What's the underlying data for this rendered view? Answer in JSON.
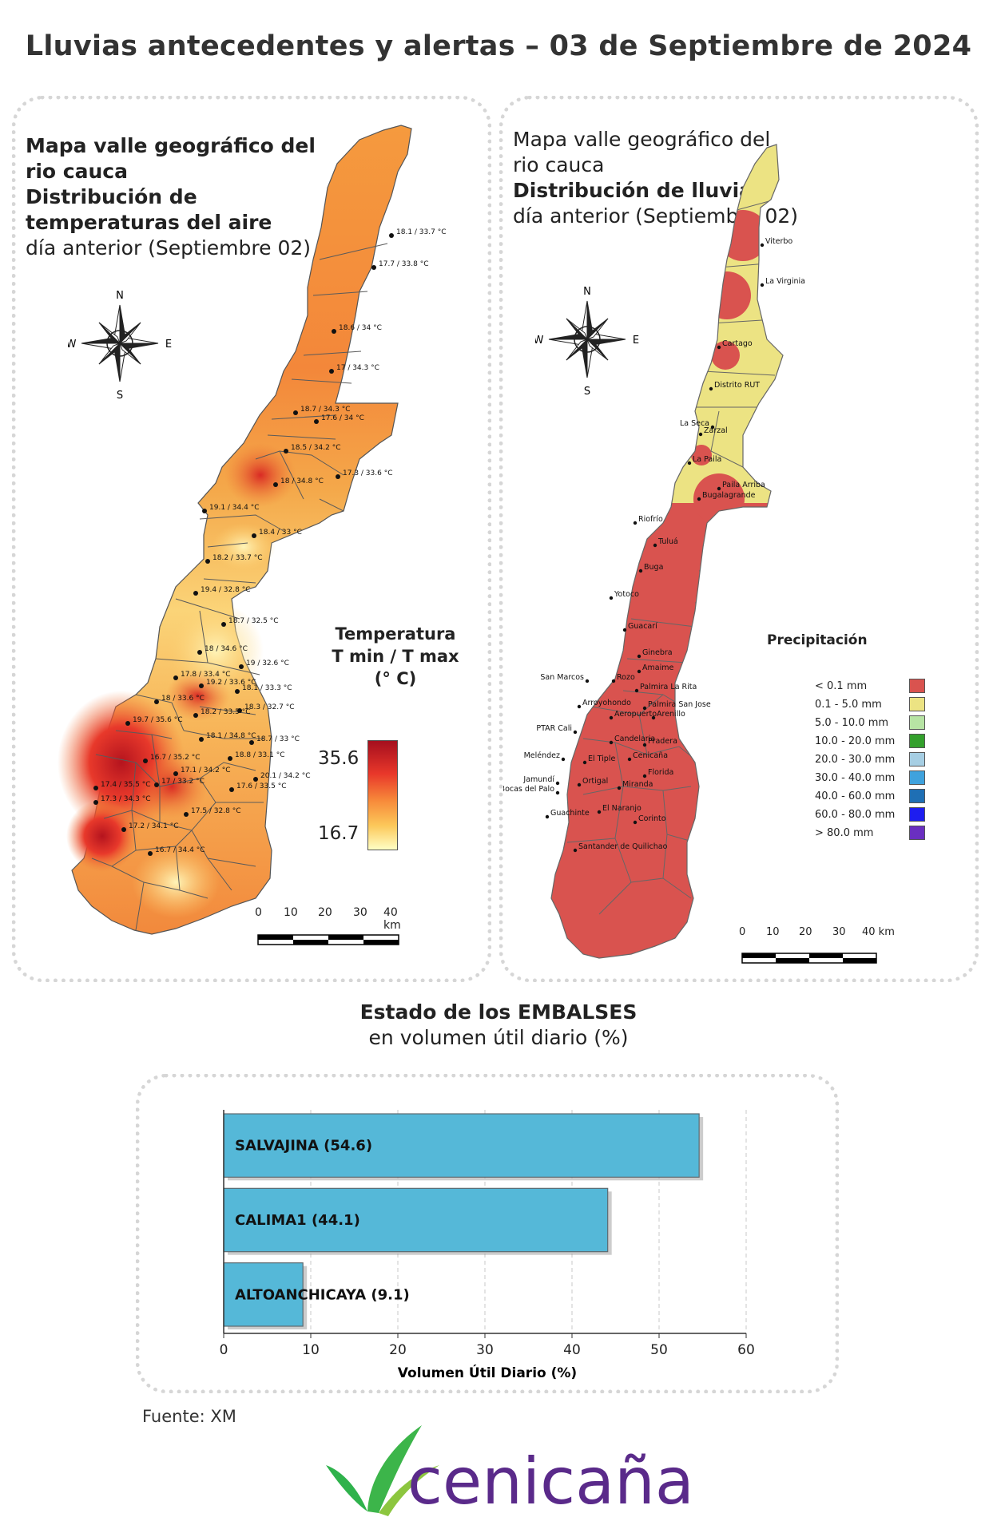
{
  "title": "Lluvias antecedentes y alertas – 03 de Septiembre de 2024",
  "left_panel": {
    "title_lines": [
      "Mapa valle geográfico del",
      "rio cauca",
      "Distribución de",
      "temperaturas del aire"
    ],
    "subtitle": "día anterior (Septiembre 02)",
    "compass": {
      "n": "N",
      "s": "S",
      "e": "E",
      "w": "W"
    },
    "legend": {
      "title_lines": [
        "Temperatura",
        "T min / T max",
        "(° C)"
      ],
      "max": "35.6",
      "min": "16.7",
      "colors": [
        "#a50f1e",
        "#e8372a",
        "#f78a3a",
        "#fcc85a",
        "#ffffc4"
      ]
    },
    "scale": {
      "labels": [
        "0",
        "10",
        "20",
        "30",
        "40 km"
      ]
    },
    "stations": [
      "18.1 / 33.7 °C",
      "17.7 / 33.8 °C",
      "18.6 / 34 °C",
      "17 / 34.3 °C",
      "18.7 / 34.3 °C",
      "17.6 / 34 °C",
      "18.5 / 34.2 °C",
      "17.3 / 33.6 °C",
      "18 / 34.8 °C",
      "19.1 / 34.4 °C",
      "18.4 / 33 °C",
      "18.2 / 33.7 °C",
      "19.4 / 32.8 °C",
      "18.7 / 32.5 °C",
      "18 / 34.6 °C",
      "19 / 32.6 °C",
      "17.8 / 33.4 °C",
      "19.2 / 33.6 °C",
      "18.1 / 33.3 °C",
      "18 / 33.6 °C",
      "18.3 / 32.7 °C",
      "18.2 / 33.5 °C",
      "19.7 / 35.6 °C",
      "18.1 / 34.8 °C",
      "18.7 / 33 °C",
      "18.8 / 33.1 °C",
      "16.7 / 35.2 °C",
      "17.1 / 34.2 °C",
      "20.1 / 34.2 °C",
      "17.4 / 35.5 °C",
      "17 / 33.2 °C",
      "17.6 / 33.5 °C",
      "17.3 / 34.3 °C",
      "17.5 / 32.8 °C",
      "17.2 / 34.1 °C",
      "16.7 / 34.4 °C"
    ]
  },
  "right_panel": {
    "title_lines": [
      "Mapa valle geográfico del",
      "rio cauca"
    ],
    "title_bold": "Distribución de lluvias",
    "subtitle": "día anterior (Septiembre 02)",
    "compass": {
      "n": "N",
      "s": "S",
      "e": "E",
      "w": "W"
    },
    "legend": {
      "title": "Precipitación",
      "items": [
        {
          "label": "< 0.1 mm",
          "color": "#d9534f"
        },
        {
          "label": "0.1 - 5.0 mm",
          "color": "#ece383"
        },
        {
          "label": "5.0 - 10.0 mm",
          "color": "#b7e4a4"
        },
        {
          "label": "10.0 - 20.0 mm",
          "color": "#33a02c"
        },
        {
          "label": "20.0 - 30.0 mm",
          "color": "#a6cee3"
        },
        {
          "label": "30.0 - 40.0 mm",
          "color": "#3fa2dd"
        },
        {
          "label": "40.0 - 60.0 mm",
          "color": "#1f6fb4"
        },
        {
          "label": "60.0 - 80.0 mm",
          "color": "#1d1df0"
        },
        {
          "label": "> 80.0 mm",
          "color": "#6a2fc0"
        }
      ]
    },
    "scale": {
      "labels": [
        "0",
        "10",
        "20",
        "30",
        "40 km"
      ]
    },
    "places": [
      "Viterbo",
      "La Virginia",
      "Cartago",
      "Distrito RUT",
      "La Seca",
      "Zarzal",
      "La Paila",
      "Paila Arriba",
      "Bugalagrande",
      "Riofrío",
      "Tuluá",
      "Buga",
      "Yotoco",
      "Guacarí",
      "Ginebra",
      "Amaime",
      "San Marcos",
      "Rozo",
      "Palmira La Rita",
      "Arroyohondo",
      "Palmira San Jose",
      "Aeropuerto",
      "Arenillo",
      "PTAR Cali",
      "Candelaria",
      "Pradera",
      "Cenicaña",
      "Meléndez",
      "El Tiple",
      "Florida",
      "Jamundí",
      "Bocas del Palo",
      "Ortigal",
      "Miranda",
      "El Naranjo",
      "Guachinte",
      "Corinto",
      "Santander de Quilichao"
    ]
  },
  "reservoirs": {
    "title": "Estado de los EMBALSES",
    "subtitle": "en volumen útil diario (%)"
  },
  "chart_data": {
    "type": "bar",
    "orientation": "horizontal",
    "categories": [
      "SALVAJINA (54.6)",
      "CALIMA1 (44.1)",
      "ALTOANCHICAYA (9.1)"
    ],
    "values": [
      54.6,
      44.1,
      9.1
    ],
    "xlabel": "Volumen Útil Diario (%)",
    "xlim": [
      0,
      60
    ],
    "xticks": [
      "0",
      "10",
      "20",
      "30",
      "40",
      "50",
      "60"
    ],
    "bar_color": "#55b8d8",
    "grid": "vertical dashed"
  },
  "source": "Fuente: XM",
  "logo": {
    "text": "cenicaña",
    "text_color": "#5a2a8a",
    "leaf_colors": [
      "#2fb24c",
      "#8cc63f"
    ]
  }
}
